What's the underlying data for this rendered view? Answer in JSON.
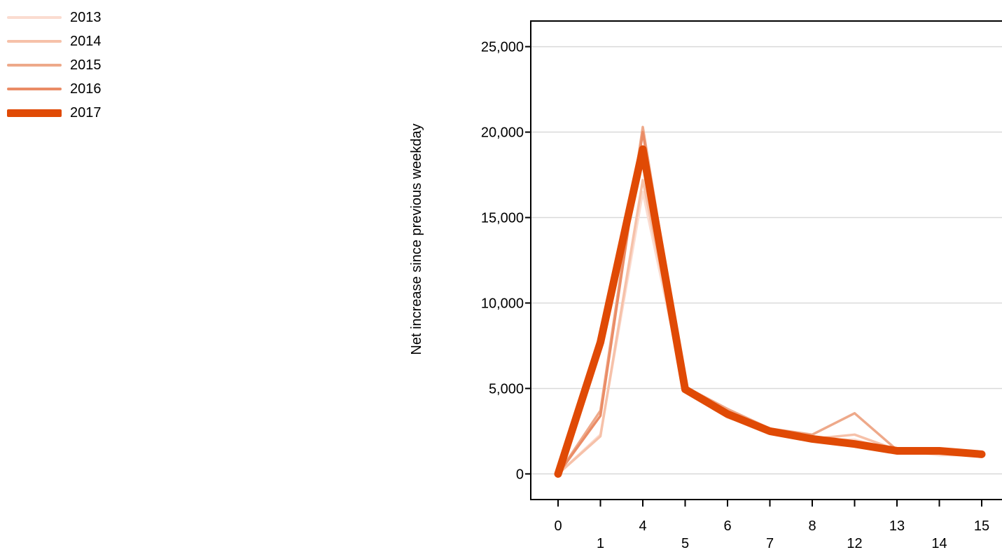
{
  "chart_data": {
    "type": "line",
    "title": "",
    "xlabel": "",
    "ylabel": "Net increase since previous weekday",
    "categories": [
      "0",
      "1",
      "4",
      "5",
      "6",
      "7",
      "8",
      "12",
      "13",
      "14",
      "15"
    ],
    "ylim": [
      -1500,
      26500
    ],
    "yticks": [
      0,
      5000,
      10000,
      15000,
      20000,
      25000
    ],
    "ytick_labels": [
      "0",
      "5,000",
      "10,000",
      "15,000",
      "20,000",
      "25,000"
    ],
    "grid": "horizontal",
    "legend_position": "top-left",
    "series": [
      {
        "name": "2013",
        "color": "#fbdcd0",
        "values": [
          0,
          2300,
          16500,
          4800,
          3300,
          2500,
          2050,
          2000,
          1400,
          1100,
          1100
        ]
      },
      {
        "name": "2014",
        "color": "#f6c1a9",
        "values": [
          0,
          2200,
          17200,
          4900,
          3700,
          2600,
          2050,
          2300,
          1400,
          1200,
          1100
        ]
      },
      {
        "name": "2015",
        "color": "#eea98a",
        "values": [
          0,
          3700,
          20300,
          5100,
          3800,
          2650,
          2300,
          3550,
          1400,
          1350,
          1150
        ]
      },
      {
        "name": "2016",
        "color": "#ea8c66",
        "values": [
          0,
          3400,
          20000,
          5000,
          3600,
          2450,
          2100,
          1750,
          1350,
          1400,
          1200
        ]
      },
      {
        "name": "2017",
        "color": "#e04a05",
        "values": [
          0,
          7700,
          19000,
          4950,
          3500,
          2500,
          2050,
          1750,
          1350,
          1350,
          1150
        ]
      }
    ]
  }
}
